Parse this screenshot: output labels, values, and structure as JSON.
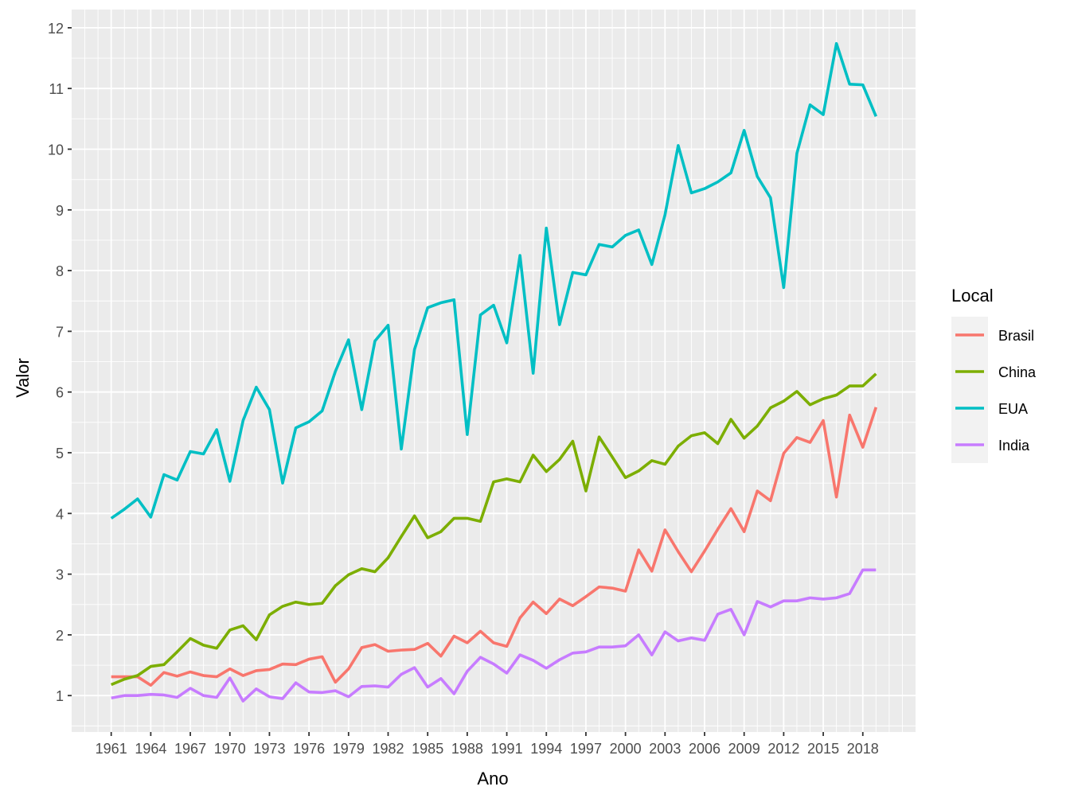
{
  "chart_data": {
    "type": "line",
    "title": "",
    "xlabel": "Ano",
    "ylabel": "Valor",
    "xlim": [
      1958,
      2022
    ],
    "ylim": [
      0.4,
      12.3
    ],
    "grid": true,
    "x_ticks": [
      1961,
      1964,
      1967,
      1970,
      1973,
      1976,
      1979,
      1982,
      1985,
      1988,
      1991,
      1994,
      1997,
      2000,
      2003,
      2006,
      2009,
      2012,
      2015,
      2018
    ],
    "y_ticks": [
      1,
      2,
      3,
      4,
      5,
      6,
      7,
      8,
      9,
      10,
      11,
      12
    ],
    "legend": {
      "title": "Local",
      "placement": "right"
    },
    "x": [
      1961,
      1962,
      1963,
      1964,
      1965,
      1966,
      1967,
      1968,
      1969,
      1970,
      1971,
      1972,
      1973,
      1974,
      1975,
      1976,
      1977,
      1978,
      1979,
      1980,
      1981,
      1982,
      1983,
      1984,
      1985,
      1986,
      1987,
      1988,
      1989,
      1990,
      1991,
      1992,
      1993,
      1994,
      1995,
      1996,
      1997,
      1998,
      1999,
      2000,
      2001,
      2002,
      2003,
      2004,
      2005,
      2006,
      2007,
      2008,
      2009,
      2010,
      2011,
      2012,
      2013,
      2014,
      2015,
      2016,
      2017,
      2018,
      2019
    ],
    "series": [
      {
        "name": "Brasil",
        "color": "#F8766D",
        "values": [
          1.31,
          1.31,
          1.31,
          1.17,
          1.38,
          1.32,
          1.39,
          1.33,
          1.31,
          1.44,
          1.33,
          1.41,
          1.43,
          1.52,
          1.51,
          1.6,
          1.64,
          1.22,
          1.44,
          1.79,
          1.84,
          1.73,
          1.75,
          1.76,
          1.86,
          1.65,
          1.98,
          1.87,
          2.06,
          1.87,
          1.81,
          2.28,
          2.54,
          2.35,
          2.59,
          2.48,
          2.63,
          2.79,
          2.77,
          2.72,
          3.4,
          3.05,
          3.73,
          3.37,
          3.04,
          3.38,
          3.74,
          4.08,
          3.7,
          4.37,
          4.21,
          4.99,
          5.25,
          5.17,
          5.53,
          4.27,
          5.62,
          5.09,
          5.75
        ]
      },
      {
        "name": "China",
        "color": "#7CAE00",
        "values": [
          1.18,
          1.27,
          1.33,
          1.48,
          1.51,
          1.72,
          1.94,
          1.83,
          1.78,
          2.08,
          2.15,
          1.92,
          2.33,
          2.47,
          2.54,
          2.5,
          2.52,
          2.81,
          2.99,
          3.09,
          3.04,
          3.27,
          3.62,
          3.96,
          3.6,
          3.7,
          3.92,
          3.92,
          3.87,
          4.52,
          4.57,
          4.52,
          4.96,
          4.69,
          4.89,
          5.19,
          4.37,
          5.26,
          4.93,
          4.59,
          4.7,
          4.87,
          4.81,
          5.11,
          5.28,
          5.33,
          5.15,
          5.55,
          5.24,
          5.44,
          5.74,
          5.85,
          6.01,
          5.79,
          5.89,
          5.95,
          6.1,
          6.1,
          6.3
        ]
      },
      {
        "name": "EUA",
        "color": "#00BFC4",
        "values": [
          3.92,
          4.07,
          4.24,
          3.94,
          4.64,
          4.55,
          5.02,
          4.98,
          5.38,
          4.53,
          5.53,
          6.08,
          5.71,
          4.5,
          5.41,
          5.51,
          5.69,
          6.34,
          6.86,
          5.71,
          6.84,
          7.1,
          5.06,
          6.7,
          7.39,
          7.47,
          7.52,
          5.3,
          7.27,
          7.43,
          6.81,
          8.25,
          6.31,
          8.7,
          7.11,
          7.97,
          7.93,
          8.43,
          8.39,
          8.58,
          8.67,
          8.1,
          8.92,
          10.06,
          9.28,
          9.35,
          9.46,
          9.61,
          10.31,
          9.55,
          9.2,
          7.72,
          9.93,
          10.73,
          10.57,
          11.74,
          11.07,
          11.06,
          10.54
        ]
      },
      {
        "name": "India",
        "color": "#C77CFF",
        "values": [
          0.96,
          1.0,
          1.0,
          1.02,
          1.01,
          0.97,
          1.12,
          1.0,
          0.97,
          1.29,
          0.91,
          1.11,
          0.98,
          0.95,
          1.21,
          1.06,
          1.05,
          1.08,
          0.98,
          1.15,
          1.16,
          1.14,
          1.35,
          1.46,
          1.14,
          1.28,
          1.03,
          1.4,
          1.63,
          1.52,
          1.37,
          1.67,
          1.58,
          1.45,
          1.59,
          1.7,
          1.72,
          1.8,
          1.8,
          1.82,
          2.0,
          1.67,
          2.05,
          1.9,
          1.95,
          1.91,
          2.34,
          2.42,
          2.0,
          2.55,
          2.46,
          2.56,
          2.56,
          2.61,
          2.59,
          2.61,
          2.68,
          3.07,
          3.07
        ]
      }
    ]
  }
}
